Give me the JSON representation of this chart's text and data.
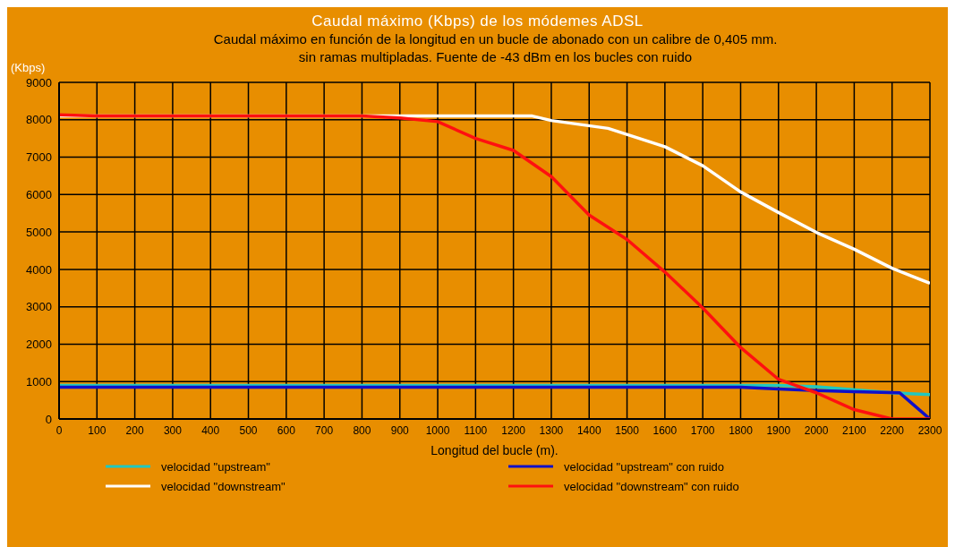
{
  "chart_data": {
    "type": "line",
    "title": "Caudal máximo (Kbps) de los módemes ADSL",
    "subtitle": "Caudal máximo en función de la longitud en un bucle de abonado con un calibre de 0,405 mm.\nsin ramas multipladas. Fuente de -43 dBm en los bucles con ruido",
    "ylabel": "(Kbps)",
    "xlabel": "Longitud del bucle (m).",
    "xlim": [
      0,
      2300
    ],
    "xticks": [
      0,
      100,
      200,
      300,
      400,
      500,
      600,
      700,
      800,
      900,
      1000,
      1100,
      1200,
      1300,
      1400,
      1500,
      1600,
      1700,
      1800,
      1900,
      2000,
      2100,
      2200,
      2300
    ],
    "ylim": [
      0,
      9000
    ],
    "yticks": [
      0,
      1000,
      2000,
      3000,
      4000,
      5000,
      6000,
      7000,
      8000,
      9000
    ],
    "grid": true,
    "legend": "bottom",
    "marker": "none",
    "line_style": "solid",
    "series": [
      {
        "name": "velocidad \"upstream\"",
        "color": "#20c8c0",
        "x": [
          0,
          1900,
          2000,
          2200,
          2300
        ],
        "values": [
          900,
          900,
          860,
          700,
          650
        ]
      },
      {
        "name": "velocidad \"downstream\"",
        "color": "#ffffff",
        "x": [
          0,
          1250,
          1300,
          1450,
          1600,
          1700,
          1800,
          1900,
          2000,
          2100,
          2200,
          2300
        ],
        "values": [
          8100,
          8100,
          7980,
          7770,
          7280,
          6770,
          6070,
          5520,
          4990,
          4540,
          4030,
          3630
        ]
      },
      {
        "name": "velocidad \"upstream\" con ruido",
        "color": "#1010c8",
        "x": [
          0,
          1800,
          1900,
          2000,
          2100,
          2220,
          2300
        ],
        "values": [
          850,
          850,
          800,
          760,
          730,
          700,
          0
        ]
      },
      {
        "name": "velocidad \"downstream\" con ruido",
        "color": "#ff1010",
        "x": [
          0,
          100,
          800,
          900,
          1000,
          1100,
          1200,
          1300,
          1400,
          1500,
          1600,
          1700,
          1800,
          1900,
          2000,
          2100,
          2200,
          2300
        ],
        "values": [
          8130,
          8100,
          8100,
          8050,
          7950,
          7500,
          7180,
          6480,
          5450,
          4800,
          3930,
          2970,
          1910,
          1060,
          700,
          250,
          0,
          0
        ]
      }
    ]
  }
}
